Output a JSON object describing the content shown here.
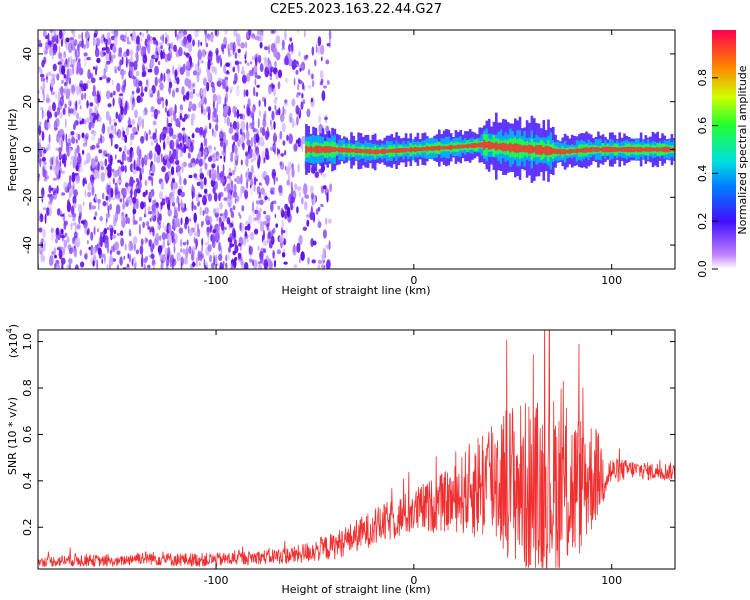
{
  "title": "C2E5.2023.163.22.44.G27",
  "colors": {
    "snr_line": "#f03030",
    "text": "#000000"
  },
  "chart_data": [
    {
      "type": "heatmap",
      "xlabel": "Height of straight line (km)",
      "ylabel": "Frequency (Hz)",
      "xlim": [
        -190,
        132
      ],
      "ylim": [
        -50,
        50
      ],
      "x_ticks": [
        -100,
        0,
        100
      ],
      "y_ticks": [
        -40,
        -20,
        0,
        20,
        40
      ],
      "grid": false,
      "colorbar": {
        "label": "Normalized spectral amplitude",
        "range": [
          0.0,
          1.0
        ],
        "ticks": [
          "0.0",
          "0.2",
          "0.4",
          "0.6",
          "0.8"
        ],
        "colormap": [
          "#ffffff",
          "#b060ff",
          "#4020ff",
          "#00a0ff",
          "#00e0e0",
          "#20ff40",
          "#e0ff00",
          "#ff8000",
          "#ff0040"
        ]
      },
      "signal_centerline": {
        "x": [
          -55,
          -40,
          -20,
          0,
          20,
          35,
          45,
          60,
          75,
          90,
          110,
          132
        ],
        "y": [
          0,
          0,
          -1,
          0,
          1,
          2,
          1,
          0,
          -1,
          0,
          0,
          0
        ]
      }
    },
    {
      "type": "line",
      "xlabel": "Height of straight line (km)",
      "ylabel": "SNR (10 * v/v)",
      "y_multiplier": "(x10",
      "y_multiplier_exp": "4",
      "y_multiplier_close": ")",
      "xlim": [
        -190,
        132
      ],
      "ylim": [
        0.02,
        1.05
      ],
      "x_ticks": [
        -100,
        0,
        100
      ],
      "y_ticks": [
        "0.2",
        "0.4",
        "0.6",
        "0.8",
        "1.0"
      ],
      "grid": false,
      "series": [
        {
          "x": [
            -190,
            -170,
            -150,
            -140,
            -120,
            -100,
            -80,
            -60,
            -40,
            -20,
            0,
            20,
            40,
            50,
            60,
            70,
            80,
            90,
            100,
            110,
            120,
            132
          ],
          "y": [
            0.05,
            0.06,
            0.05,
            0.07,
            0.06,
            0.06,
            0.07,
            0.08,
            0.12,
            0.2,
            0.27,
            0.32,
            0.42,
            0.4,
            0.35,
            0.38,
            0.36,
            0.42,
            0.44,
            0.45,
            0.44,
            0.44
          ],
          "spread": [
            0.02,
            0.03,
            0.02,
            0.03,
            0.03,
            0.03,
            0.03,
            0.04,
            0.06,
            0.08,
            0.1,
            0.14,
            0.3,
            0.35,
            0.4,
            0.4,
            0.35,
            0.25,
            0.06,
            0.04,
            0.04,
            0.04
          ]
        }
      ]
    }
  ]
}
